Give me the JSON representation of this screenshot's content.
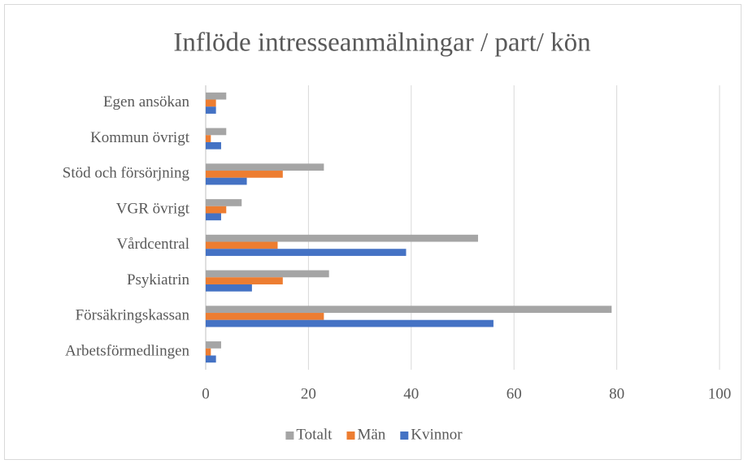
{
  "chart_data": {
    "type": "bar",
    "orientation": "horizontal",
    "title": "Inflöde intresseanmälningar / part/ kön",
    "categories": [
      "Egen ansökan",
      "Kommun övrigt",
      "Stöd och försörjning",
      "VGR övrigt",
      "Vårdcentral",
      "Psykiatrin",
      "Försäkringskassan",
      "Arbetsförmedlingen"
    ],
    "series": [
      {
        "name": "Totalt",
        "color": "#a5a5a5",
        "values": [
          4,
          4,
          23,
          7,
          53,
          24,
          79,
          3
        ]
      },
      {
        "name": "Män",
        "color": "#ed7d31",
        "values": [
          2,
          1,
          15,
          4,
          14,
          15,
          23,
          1
        ]
      },
      {
        "name": "Kvinnor",
        "color": "#4472c4",
        "values": [
          2,
          3,
          8,
          3,
          39,
          9,
          56,
          2
        ]
      }
    ],
    "xlim": [
      0,
      100
    ],
    "xticks": [
      0,
      20,
      40,
      60,
      80,
      100
    ],
    "grid": true,
    "legend": "bottom"
  }
}
